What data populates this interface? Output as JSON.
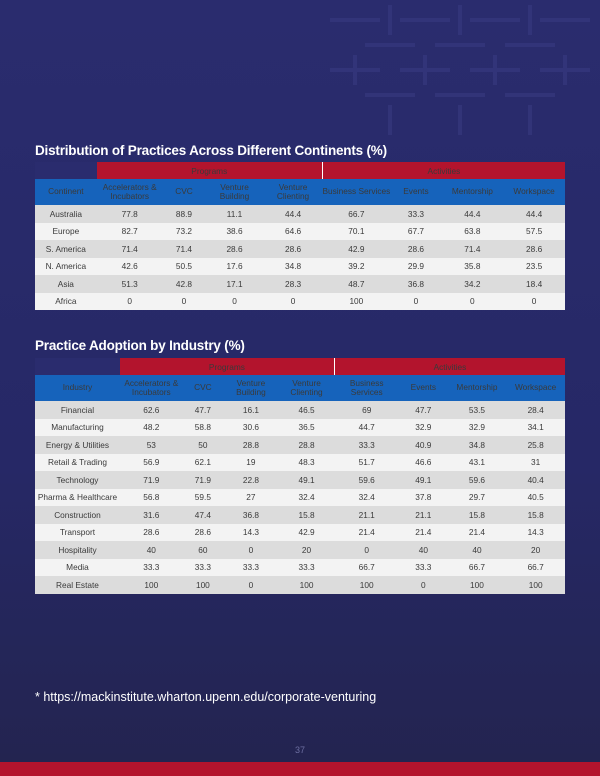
{
  "table1": {
    "title": "Distribution of Practices Across Different Continents (%)",
    "group_programs": "Programs",
    "group_activities": "Activities",
    "headers": [
      "Continent",
      "Accelerators & Incubators",
      "CVC",
      "Venture Building",
      "Venture Clienting",
      "Business Services",
      "Events",
      "Mentorship",
      "Workspace"
    ],
    "rows": [
      [
        "Australia",
        "77.8",
        "88.9",
        "11.1",
        "44.4",
        "66.7",
        "33.3",
        "44.4",
        "44.4"
      ],
      [
        "Europe",
        "82.7",
        "73.2",
        "38.6",
        "64.6",
        "70.1",
        "67.7",
        "63.8",
        "57.5"
      ],
      [
        "S. America",
        "71.4",
        "71.4",
        "28.6",
        "28.6",
        "42.9",
        "28.6",
        "71.4",
        "28.6"
      ],
      [
        "N. America",
        "42.6",
        "50.5",
        "17.6",
        "34.8",
        "39.2",
        "29.9",
        "35.8",
        "23.5"
      ],
      [
        "Asia",
        "51.3",
        "42.8",
        "17.1",
        "28.3",
        "48.7",
        "36.8",
        "34.2",
        "18.4"
      ],
      [
        "Africa",
        "0",
        "0",
        "0",
        "0",
        "100",
        "0",
        "0",
        "0"
      ]
    ]
  },
  "table2": {
    "title": "Practice Adoption by Industry (%)",
    "group_programs": "Programs",
    "group_activities": "Activities",
    "headers": [
      "Industry",
      "Accelerators & Incubators",
      "CVC",
      "Venture Building",
      "Venture Clienting",
      "Business Services",
      "Events",
      "Mentorship",
      "Workspace"
    ],
    "rows": [
      [
        "Financial",
        "62.6",
        "47.7",
        "16.1",
        "46.5",
        "69",
        "47.7",
        "53.5",
        "28.4"
      ],
      [
        "Manufacturing",
        "48.2",
        "58.8",
        "30.6",
        "36.5",
        "44.7",
        "32.9",
        "32.9",
        "34.1"
      ],
      [
        "Energy & Utilities",
        "53",
        "50",
        "28.8",
        "28.8",
        "33.3",
        "40.9",
        "34.8",
        "25.8"
      ],
      [
        "Retail & Trading",
        "56.9",
        "62.1",
        "19",
        "48.3",
        "51.7",
        "46.6",
        "43.1",
        "31"
      ],
      [
        "Technology",
        "71.9",
        "71.9",
        "22.8",
        "49.1",
        "59.6",
        "49.1",
        "59.6",
        "40.4"
      ],
      [
        "Pharma & Healthcare",
        "56.8",
        "59.5",
        "27",
        "32.4",
        "32.4",
        "37.8",
        "29.7",
        "40.5"
      ],
      [
        "Construction",
        "31.6",
        "47.4",
        "36.8",
        "15.8",
        "21.1",
        "21.1",
        "15.8",
        "15.8"
      ],
      [
        "Transport",
        "28.6",
        "28.6",
        "14.3",
        "42.9",
        "21.4",
        "21.4",
        "21.4",
        "14.3"
      ],
      [
        "Hospitality",
        "40",
        "60",
        "0",
        "20",
        "0",
        "40",
        "40",
        "20"
      ],
      [
        "Media",
        "33.3",
        "33.3",
        "33.3",
        "33.3",
        "66.7",
        "33.3",
        "66.7",
        "66.7"
      ],
      [
        "Real Estate",
        "100",
        "100",
        "0",
        "100",
        "100",
        "0",
        "100",
        "100"
      ]
    ]
  },
  "footnote": "* https://mackinstitute.wharton.upenn.edu/corporate-venturing",
  "page_number": "37",
  "colors": {
    "background": "#2a2c6e",
    "group_header": "#b3142d",
    "column_header": "#1663bb",
    "row_odd": "#dcdcdc",
    "row_even": "#f3f3f3",
    "footer_bar": "#b3142d"
  }
}
